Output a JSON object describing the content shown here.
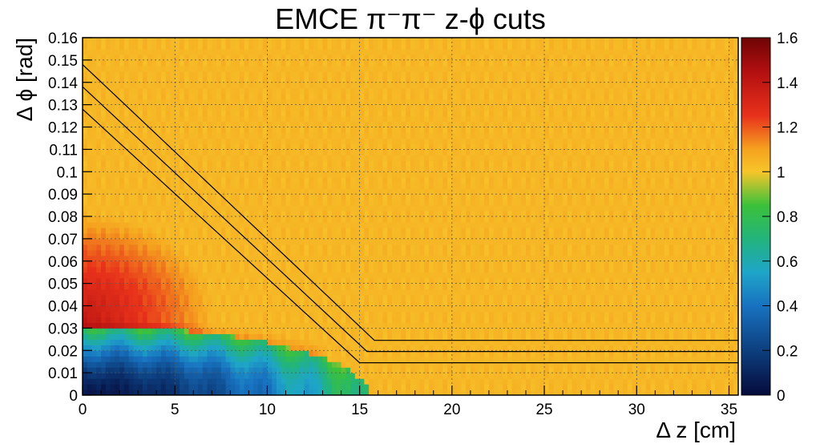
{
  "chart_data": {
    "type": "heatmap",
    "title": "EMCE π⁻π⁻  z-ϕ cuts",
    "xlabel": "Δ z [cm]",
    "ylabel": "Δ ϕ [rad]",
    "xlim": [
      0,
      35.5
    ],
    "ylim": [
      0,
      0.16
    ],
    "x_ticks": [
      "0",
      "5",
      "10",
      "15",
      "20",
      "25",
      "30",
      "35"
    ],
    "y_ticks": [
      "0",
      "0.01",
      "0.02",
      "0.03",
      "0.04",
      "0.05",
      "0.06",
      "0.07",
      "0.08",
      "0.09",
      "0.1",
      "0.11",
      "0.12",
      "0.13",
      "0.14",
      "0.15",
      "0.16"
    ],
    "grid": true,
    "colorbar": {
      "range": [
        0,
        1.6
      ],
      "ticks": [
        "0",
        "0.2",
        "0.4",
        "0.6",
        "0.8",
        "1",
        "1.2",
        "1.4",
        "1.6"
      ],
      "stops": [
        {
          "v": 0.0,
          "color": "#050a3c"
        },
        {
          "v": 0.2,
          "color": "#0d3f7e"
        },
        {
          "v": 0.4,
          "color": "#1872c0"
        },
        {
          "v": 0.55,
          "color": "#1ea5c8"
        },
        {
          "v": 0.7,
          "color": "#22b47c"
        },
        {
          "v": 0.85,
          "color": "#3cc13a"
        },
        {
          "v": 1.0,
          "color": "#f7c52a"
        },
        {
          "v": 1.1,
          "color": "#f5a21f"
        },
        {
          "v": 1.25,
          "color": "#e8321b"
        },
        {
          "v": 1.45,
          "color": "#b20f10"
        },
        {
          "v": 1.6,
          "color": "#6e0405"
        }
      ]
    },
    "cut_lines": [
      {
        "points": [
          [
            0,
            0.148
          ],
          [
            15.8,
            0.0245
          ],
          [
            35.5,
            0.0245
          ]
        ]
      },
      {
        "points": [
          [
            0,
            0.138
          ],
          [
            15.4,
            0.0195
          ],
          [
            35.5,
            0.0195
          ]
        ]
      },
      {
        "points": [
          [
            0,
            0.128
          ],
          [
            15.0,
            0.0145
          ],
          [
            35.5,
            0.0145
          ]
        ]
      }
    ],
    "colors": {
      "line": "#000000",
      "grid": "#555555",
      "background": "#f6b82a"
    }
  }
}
